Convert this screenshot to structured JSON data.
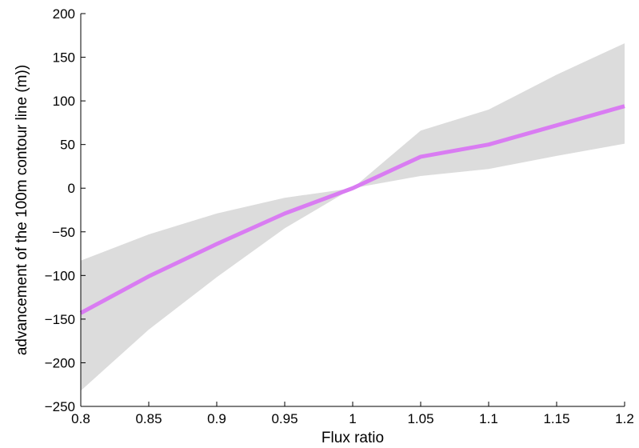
{
  "chart_data": {
    "type": "line",
    "title": "",
    "xlabel": "Flux ratio",
    "ylabel": "advancement of the 100m contour line (m))",
    "xlim": [
      0.8,
      1.2
    ],
    "ylim": [
      -250,
      200
    ],
    "x_ticks": [
      0.8,
      0.85,
      0.9,
      0.95,
      1,
      1.05,
      1.1,
      1.15,
      1.2
    ],
    "x_tick_labels": [
      "0.8",
      "0.85",
      "0.9",
      "0.95",
      "1",
      "1.05",
      "1.1",
      "1.15",
      "1.2"
    ],
    "y_ticks": [
      200,
      150,
      100,
      50,
      0,
      -50,
      -100,
      -150,
      -200,
      -250
    ],
    "y_tick_labels": [
      "200",
      "150",
      "100",
      "50",
      "0",
      "−50",
      "−100",
      "−150",
      "−200",
      "−250"
    ],
    "grid": false,
    "x": [
      0.8,
      0.85,
      0.9,
      0.95,
      1.0,
      1.05,
      1.1,
      1.15,
      1.2
    ],
    "series": [
      {
        "values": [
          -143,
          -101,
          -64,
          -29,
          0,
          36,
          50,
          72,
          94
        ],
        "color": "#d97cf2"
      }
    ],
    "band": {
      "upper": [
        -83,
        -53,
        -29,
        -11,
        0,
        66,
        90,
        130,
        166
      ],
      "lower": [
        -232,
        -162,
        -102,
        -46,
        0,
        14,
        22,
        37,
        51
      ],
      "color": "#dcdcdc"
    }
  }
}
